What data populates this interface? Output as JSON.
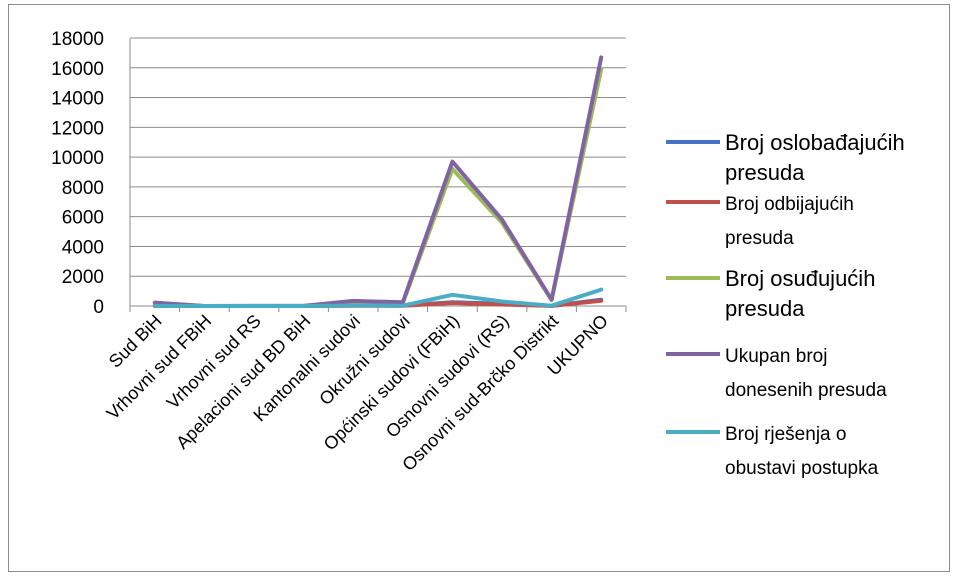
{
  "chart_data": {
    "type": "line",
    "title": "",
    "xlabel": "",
    "ylabel": "",
    "ylim": [
      0,
      18000
    ],
    "yticks": [
      0,
      2000,
      4000,
      6000,
      8000,
      10000,
      12000,
      14000,
      16000,
      18000
    ],
    "grid": true,
    "legend_position": "right",
    "categories": [
      "Sud BiH",
      "Vrhovni sud FBiH",
      "Vrhovni sud RS",
      "Apelacioni sud BD BiH",
      "Kantonalni sudovi",
      "Okružni sudovi",
      "Općinski sudovi (FBiH)",
      "Osnovni sudovi (RS)",
      "Osnovni sud-Brčko Distrikt",
      "UKUPNO"
    ],
    "series": [
      {
        "name": "Broj oslobađajućih presuda",
        "color": "#4472c4",
        "values": [
          20,
          0,
          0,
          0,
          40,
          30,
          250,
          150,
          10,
          420
        ]
      },
      {
        "name": "Broj odbijajućih presuda",
        "color": "#c0504d",
        "values": [
          10,
          0,
          0,
          0,
          20,
          20,
          200,
          100,
          5,
          350
        ]
      },
      {
        "name": "Broj osuđujućih presuda",
        "color": "#9bbb59",
        "values": [
          200,
          0,
          10,
          10,
          280,
          200,
          9200,
          5600,
          400,
          15900
        ]
      },
      {
        "name": "Ukupan broj donesenih presuda",
        "color": "#8064a2",
        "values": [
          230,
          0,
          10,
          10,
          340,
          250,
          9700,
          5800,
          420,
          16700
        ]
      },
      {
        "name": "Broj rješenja o obustavi postupka",
        "color": "#4bacc6",
        "values": [
          10,
          0,
          0,
          0,
          30,
          20,
          750,
          300,
          20,
          1100
        ]
      }
    ],
    "legend": [
      {
        "lines": [
          "Broj oslobađajućih",
          "presuda"
        ],
        "big": true
      },
      {
        "lines": [
          "Broj odbijajućih",
          "presuda"
        ],
        "big": false
      },
      {
        "lines": [
          "Broj osuđujućih",
          "presuda"
        ],
        "big": true
      },
      {
        "lines": [
          "Ukupan broj",
          "donesenih presuda"
        ],
        "big": false
      },
      {
        "lines": [
          "Broj rješenja o",
          "obustavi postupka"
        ],
        "big": false
      }
    ]
  }
}
